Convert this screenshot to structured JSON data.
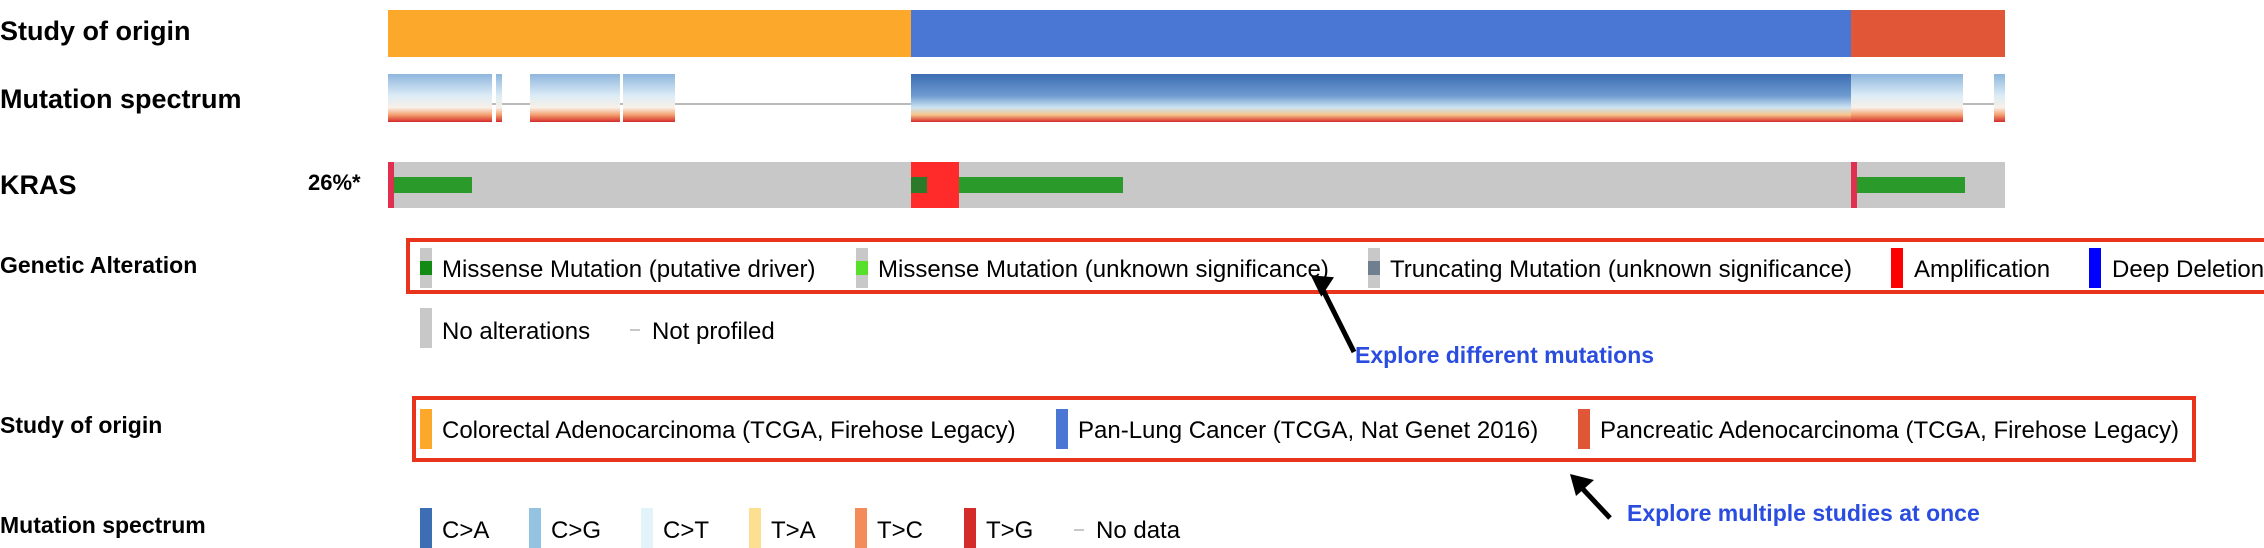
{
  "tracks": {
    "study_of_origin": "Study of origin",
    "mutation_spectrum": "Mutation spectrum",
    "gene": "KRAS",
    "gene_frequency": "26%*"
  },
  "legend": {
    "genetic_alteration": {
      "title": "Genetic Alteration",
      "items": [
        "Missense Mutation (putative driver)",
        "Missense Mutation (unknown significance)",
        "Truncating Mutation (unknown significance)",
        "Amplification",
        "Deep Deletion",
        "No alterations",
        "Not profiled"
      ]
    },
    "study_of_origin": {
      "title": "Study of origin",
      "items": [
        "Colorectal Adenocarcinoma (TCGA, Firehose Legacy)",
        "Pan-Lung Cancer (TCGA, Nat Genet 2016)",
        "Pancreatic Adenocarcinoma (TCGA, Firehose Legacy)"
      ]
    },
    "mutation_spectrum": {
      "title": "Mutation spectrum",
      "items": [
        "C>A",
        "C>G",
        "C>T",
        "T>A",
        "T>C",
        "T>G",
        "No data"
      ]
    }
  },
  "annotations": {
    "explore_mutations": "Explore different mutations",
    "explore_studies": "Explore multiple studies at once"
  },
  "colors": {
    "colorectal": "#fba82b",
    "pan_lung": "#4a77d4",
    "pancreatic": "#e05636",
    "missense_driver": "#138a13",
    "missense_unknown": "#56e02a",
    "truncating": "#6f7f90",
    "amplification": "#ff0000",
    "deep_deletion": "#0000ff",
    "no_alteration": "#c8c8c8",
    "ca": "#3d6eb4",
    "cg": "#94c3e2",
    "ct": "#e3f3fa",
    "ta": "#fddf92",
    "tc": "#f38c5a",
    "tg": "#d42b2b",
    "highlight_box": "#e8341c",
    "annotation_text": "#2a4de0"
  }
}
